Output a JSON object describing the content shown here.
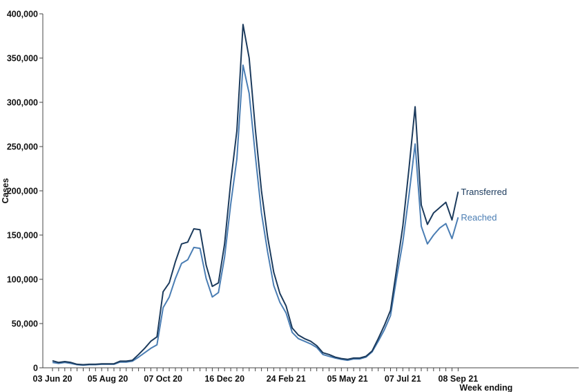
{
  "chart_data": {
    "type": "line",
    "ylabel": "Cases",
    "xlabel": "Week ending",
    "ylim": [
      0,
      400000
    ],
    "y_ticks": [
      0,
      50000,
      100000,
      150000,
      200000,
      250000,
      300000,
      350000,
      400000
    ],
    "y_tick_labels": [
      "0",
      "50,000",
      "100,000",
      "150,000",
      "200,000",
      "250,000",
      "300,000",
      "350,000",
      "400,000"
    ],
    "x_tick_labels": [
      {
        "label": "03 Jun 20",
        "index": 0
      },
      {
        "label": "05 Aug 20",
        "index": 9
      },
      {
        "label": "07 Oct 20",
        "index": 18
      },
      {
        "label": "16 Dec 20",
        "index": 28
      },
      {
        "label": "24 Feb 21",
        "index": 38
      },
      {
        "label": "05 May 21",
        "index": 48
      },
      {
        "label": "07 Jul 21",
        "index": 57
      },
      {
        "label": "08 Sep 21",
        "index": 66
      }
    ],
    "weeks_total": 67,
    "colors": {
      "Transferred": "#1b3a5c",
      "Reached": "#4a7db3",
      "axis": "#444444"
    },
    "series": [
      {
        "name": "Transferred",
        "values": [
          8000,
          6000,
          7000,
          6000,
          4000,
          3500,
          4000,
          4000,
          4500,
          4500,
          4500,
          7500,
          7500,
          8500,
          15000,
          22000,
          30000,
          35000,
          86000,
          96000,
          120000,
          140000,
          142000,
          157000,
          156000,
          116000,
          92000,
          96000,
          140000,
          210000,
          268000,
          388000,
          350000,
          270000,
          200000,
          148000,
          108000,
          84000,
          70000,
          45000,
          37000,
          33000,
          30000,
          25000,
          17000,
          15000,
          12000,
          10500,
          9500,
          11000,
          11000,
          13000,
          19000,
          33000,
          48000,
          65000,
          112000,
          160000,
          225000,
          295000,
          184000,
          162000,
          175000,
          181000,
          187000,
          167000,
          199000
        ]
      },
      {
        "name": "Reached",
        "values": [
          6000,
          5000,
          6000,
          5000,
          3500,
          3000,
          3500,
          3500,
          4000,
          4000,
          4000,
          6500,
          6500,
          7500,
          12000,
          17000,
          22000,
          26000,
          68000,
          80000,
          101000,
          118000,
          122000,
          136000,
          135000,
          101000,
          80000,
          85000,
          125000,
          185000,
          236000,
          342000,
          310000,
          240000,
          175000,
          131000,
          93000,
          74000,
          62000,
          40000,
          33000,
          30000,
          27000,
          23000,
          15000,
          13000,
          11000,
          9500,
          8500,
          10000,
          10000,
          12000,
          18000,
          30000,
          43000,
          59000,
          102000,
          142000,
          195000,
          253000,
          160000,
          140000,
          150000,
          158000,
          163000,
          146000,
          170000
        ]
      }
    ]
  }
}
